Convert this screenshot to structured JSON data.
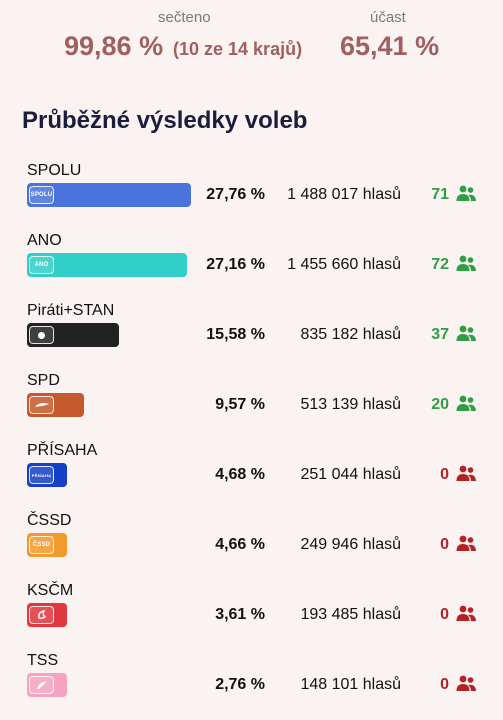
{
  "stats": {
    "counted_label": "sečteno",
    "counted_value": "99,86 %",
    "counted_detail": "(10 ze 14 krajů)",
    "turnout_label": "účast",
    "turnout_value": "65,41 %"
  },
  "heading": "Průběžné výsledky voleb",
  "colors": {
    "seat_positive": "#2f9e44",
    "seat_zero": "#b32323",
    "stat_value": "#a06060"
  },
  "parties": [
    {
      "name": "SPOLU",
      "logo_text": "SPOLU",
      "percent": "27,76 %",
      "share": 27.76,
      "votes": "1 488 017 hlasů",
      "seats": "71",
      "color": "#4a73dc"
    },
    {
      "name": "ANO",
      "logo_text": "ANO",
      "percent": "27,16 %",
      "share": 27.16,
      "votes": "1 455 660 hlasů",
      "seats": "72",
      "color": "#31cfc8"
    },
    {
      "name": "Piráti+STAN",
      "logo_text": "",
      "percent": "15,58 %",
      "share": 15.58,
      "votes": "835 182 hlasů",
      "seats": "37",
      "color": "#222222"
    },
    {
      "name": "SPD",
      "logo_text": "",
      "percent": "9,57 %",
      "share": 9.57,
      "votes": "513 139 hlasů",
      "seats": "20",
      "color": "#c55a2e"
    },
    {
      "name": "PŘÍSAHA",
      "logo_text": "PŘÍSAHA",
      "percent": "4,68 %",
      "share": 4.68,
      "votes": "251 044 hlasů",
      "seats": "0",
      "color": "#1740c8"
    },
    {
      "name": "ČSSD",
      "logo_text": "ČSSD",
      "percent": "4,66 %",
      "share": 4.66,
      "votes": "249 946 hlasů",
      "seats": "0",
      "color": "#f39a2c"
    },
    {
      "name": "KSČM",
      "logo_text": "",
      "percent": "3,61 %",
      "share": 3.61,
      "votes": "193 485 hlasů",
      "seats": "0",
      "color": "#e0383f"
    },
    {
      "name": "TSS",
      "logo_text": "",
      "percent": "2,76 %",
      "share": 2.76,
      "votes": "148 101 hlasů",
      "seats": "0",
      "color": "#f5a3c0"
    }
  ]
}
